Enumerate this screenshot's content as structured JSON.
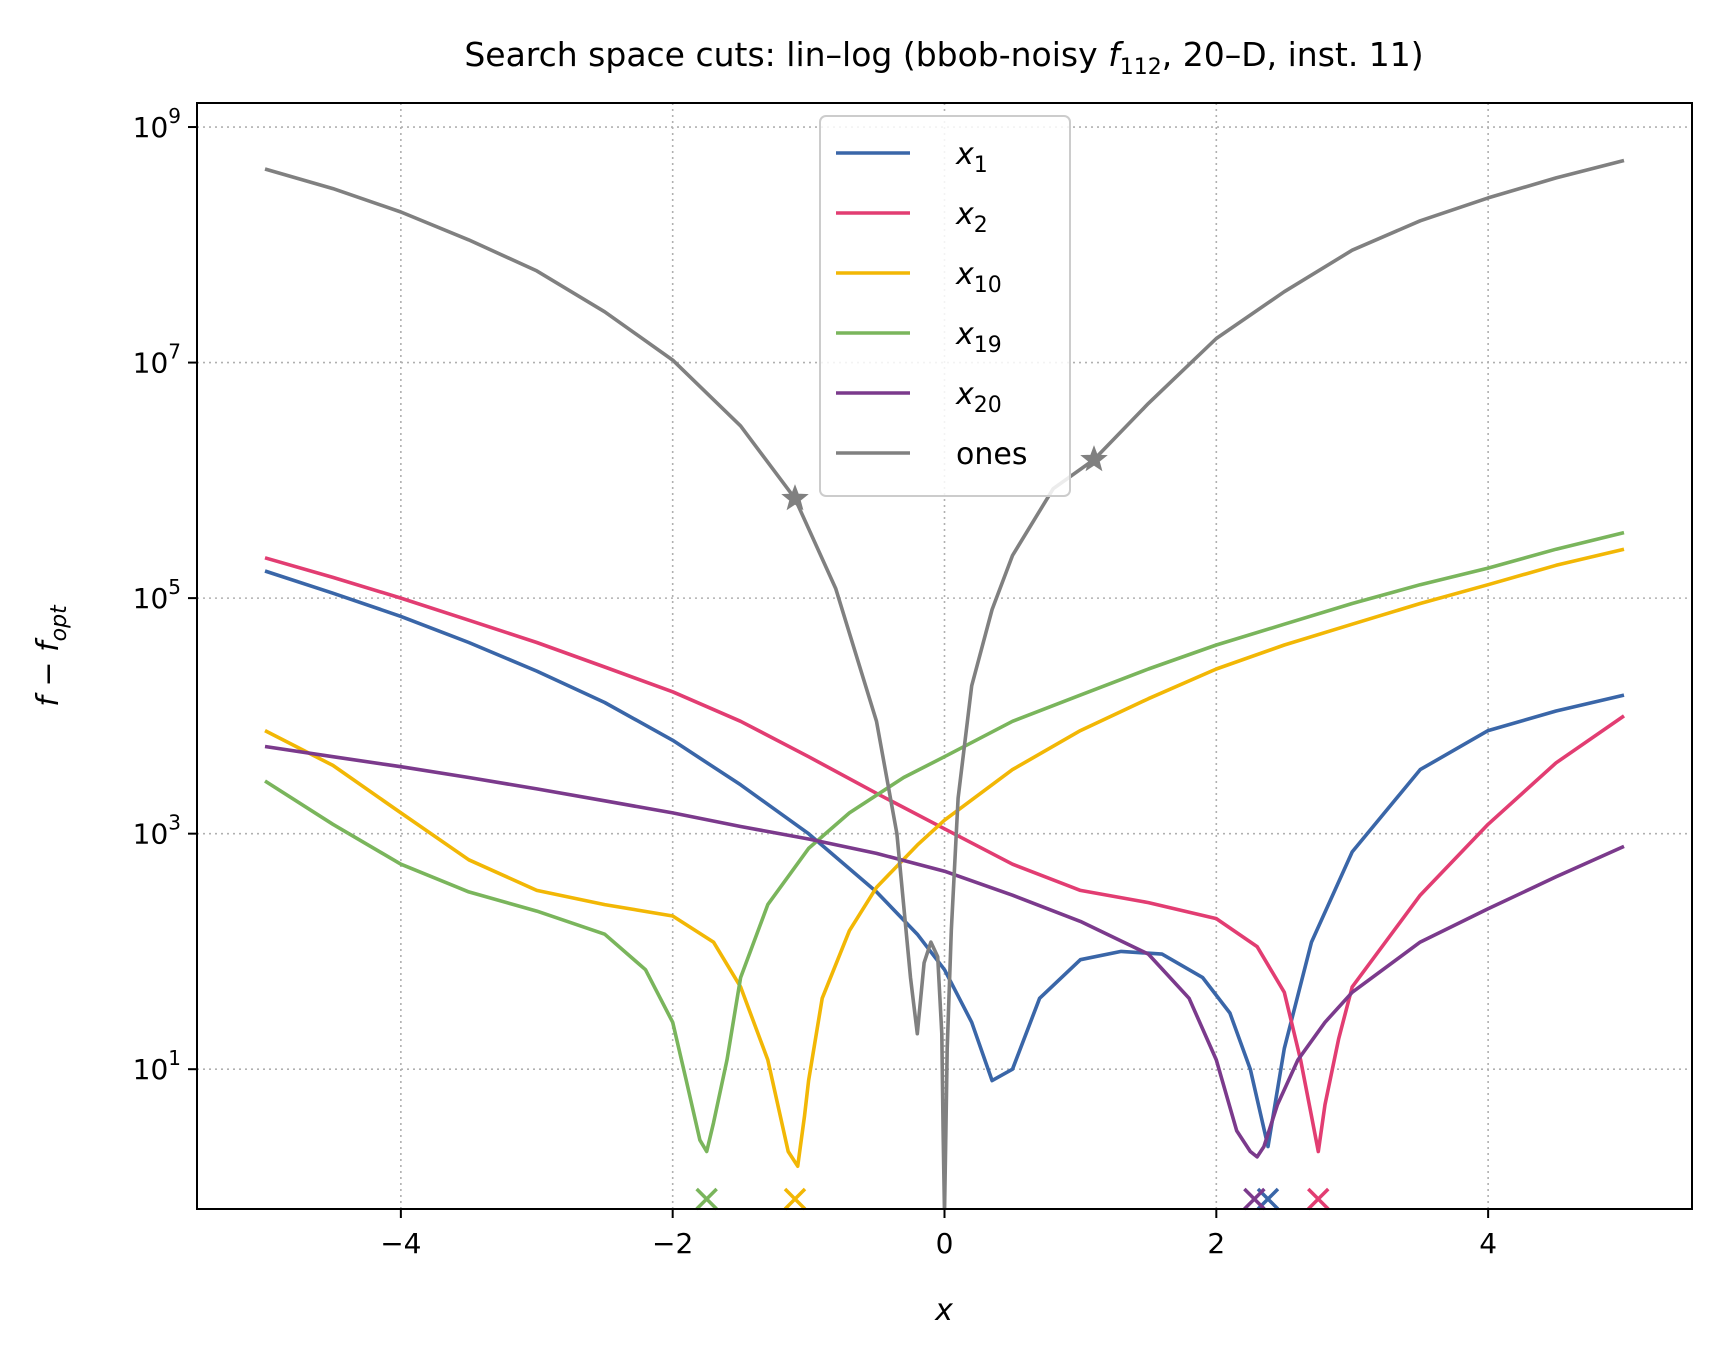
{
  "chart_data": {
    "type": "line",
    "title": "Search space cuts: lin–log (bbob-noisy f112, 20–D, inst. 11)",
    "title_parts": {
      "prefix": "Search space cuts: lin–log (bbob-noisy ",
      "f": "f",
      "f_sub": "112",
      "suffix": ", 20–D, inst. 11)"
    },
    "xlabel": "x",
    "ylabel": "f − f_opt",
    "ylabel_parts": {
      "main": "f − f",
      "sub": "opt"
    },
    "x_scale": "linear",
    "y_scale": "log",
    "xlim": [
      -5.5,
      5.5
    ],
    "ylim": [
      0.65,
      1600000000.0
    ],
    "x_ticks": [
      -4,
      -2,
      0,
      2,
      4
    ],
    "x_tick_labels": [
      "−4",
      "−2",
      "0",
      "2",
      "4"
    ],
    "y_ticks": [
      10,
      1000,
      100000,
      10000000,
      1000000000
    ],
    "y_tick_labels": [
      {
        "base": "10",
        "exp": "1"
      },
      {
        "base": "10",
        "exp": "3"
      },
      {
        "base": "10",
        "exp": "5"
      },
      {
        "base": "10",
        "exp": "7"
      },
      {
        "base": "10",
        "exp": "9"
      }
    ],
    "grid": true,
    "legend_placement": "top-center",
    "series": [
      {
        "name": "x1",
        "label_main": "x",
        "label_sub": "1",
        "color": "#3a66a8",
        "x": [
          -5,
          -4.5,
          -4,
          -3.5,
          -3,
          -2.5,
          -2,
          -1.5,
          -1,
          -0.5,
          -0.2,
          0,
          0.2,
          0.35,
          0.5,
          0.7,
          1,
          1.3,
          1.6,
          1.9,
          2.1,
          2.25,
          2.38,
          2.5,
          2.7,
          3,
          3.5,
          4,
          4.5,
          5
        ],
        "y": [
          170000,
          110000,
          70000,
          42000,
          24000,
          13000,
          6200,
          2600,
          1000,
          320,
          140,
          70,
          25,
          8,
          10,
          40,
          85,
          100,
          95,
          60,
          30,
          10,
          2.2,
          15,
          120,
          700,
          3500,
          7500,
          11000,
          15000
        ],
        "minimum": {
          "x": 2.38
        }
      },
      {
        "name": "x2",
        "label_main": "x",
        "label_sub": "2",
        "color": "#e23d72",
        "x": [
          -5,
          -4.5,
          -4,
          -3.5,
          -3,
          -2.5,
          -2,
          -1.5,
          -1,
          -0.5,
          0,
          0.5,
          1,
          1.5,
          2,
          2.3,
          2.5,
          2.62,
          2.7,
          2.75,
          2.8,
          2.9,
          3,
          3.5,
          4,
          4.5,
          5
        ],
        "y": [
          220000,
          150000,
          100000,
          65000,
          42000,
          26000,
          16000,
          9000,
          4500,
          2200,
          1100,
          550,
          330,
          260,
          190,
          110,
          45,
          12,
          4,
          2,
          5,
          18,
          50,
          300,
          1200,
          4000,
          10000
        ],
        "minimum": {
          "x": 2.75
        }
      },
      {
        "name": "x10",
        "label_main": "x",
        "label_sub": "10",
        "color": "#f2b705",
        "x": [
          -5,
          -4.5,
          -4,
          -3.5,
          -3,
          -2.5,
          -2,
          -1.7,
          -1.5,
          -1.3,
          -1.15,
          -1.08,
          -1.03,
          -1,
          -0.9,
          -0.7,
          -0.5,
          -0.2,
          0,
          0.5,
          1,
          1.5,
          2,
          2.5,
          3,
          3.5,
          4,
          4.5,
          5
        ],
        "y": [
          7500,
          3800,
          1500,
          600,
          330,
          250,
          200,
          120,
          50,
          12,
          2,
          1.5,
          4,
          8,
          40,
          150,
          350,
          800,
          1300,
          3500,
          7500,
          14000,
          25000,
          40000,
          60000,
          90000,
          130000,
          190000,
          260000
        ],
        "minimum": {
          "x": -1.1
        }
      },
      {
        "name": "x19",
        "label_main": "x",
        "label_sub": "19",
        "color": "#7ab55c",
        "x": [
          -5,
          -4.5,
          -4,
          -3.5,
          -3,
          -2.5,
          -2.2,
          -2,
          -1.9,
          -1.8,
          -1.75,
          -1.7,
          -1.6,
          -1.5,
          -1.3,
          -1,
          -0.7,
          -0.3,
          0,
          0.5,
          1,
          1.5,
          2,
          2.5,
          3,
          3.5,
          4,
          4.5,
          5
        ],
        "y": [
          2800,
          1200,
          550,
          320,
          220,
          140,
          70,
          25,
          8,
          2.5,
          2,
          3.5,
          12,
          60,
          250,
          750,
          1500,
          3000,
          4500,
          9000,
          15000,
          25000,
          40000,
          60000,
          90000,
          130000,
          180000,
          260000,
          360000
        ],
        "minimum": {
          "x": -1.75
        }
      },
      {
        "name": "x20",
        "label_main": "x",
        "label_sub": "20",
        "color": "#7b3a8c",
        "x": [
          -5,
          -4.5,
          -4,
          -3.5,
          -3,
          -2.5,
          -2,
          -1.5,
          -1,
          -0.5,
          0,
          0.5,
          1,
          1.5,
          1.8,
          2,
          2.15,
          2.25,
          2.3,
          2.35,
          2.45,
          2.6,
          2.8,
          3,
          3.5,
          4,
          4.5,
          5
        ],
        "y": [
          5500,
          4500,
          3700,
          3000,
          2400,
          1900,
          1500,
          1150,
          900,
          680,
          480,
          300,
          180,
          95,
          40,
          12,
          3,
          2,
          1.8,
          2.2,
          5,
          12,
          25,
          45,
          120,
          230,
          430,
          780
        ],
        "minimum": {
          "x": 2.28
        }
      },
      {
        "name": "ones",
        "label_main": "ones",
        "label_sub": "",
        "color": "#808080",
        "x": [
          -5,
          -4.5,
          -4,
          -3.5,
          -3,
          -2.5,
          -2,
          -1.5,
          -1.1,
          -0.8,
          -0.5,
          -0.35,
          -0.25,
          -0.2,
          -0.15,
          -0.1,
          -0.05,
          -0.02,
          -0.01,
          0,
          0.01,
          0.02,
          0.05,
          0.1,
          0.2,
          0.35,
          0.5,
          0.8,
          1.1,
          1.5,
          2,
          2.5,
          3,
          3.5,
          4,
          4.5,
          5
        ],
        "y": [
          440000000,
          300000000,
          190000000,
          110000000,
          60000000,
          27000000,
          10500000,
          2900000,
          700000,
          120000,
          9000,
          1000,
          60,
          20,
          80,
          120,
          90,
          20,
          3,
          0.6,
          3,
          15,
          150,
          2000,
          18000,
          80000,
          230000,
          850000,
          1500000,
          4500000,
          16000000,
          40000000,
          90000000,
          160000000,
          250000000,
          370000000,
          520000000
        ],
        "markers": [
          {
            "x": -1.1,
            "y": 700000
          },
          {
            "x": 1.1,
            "y": 1500000
          }
        ]
      }
    ]
  }
}
